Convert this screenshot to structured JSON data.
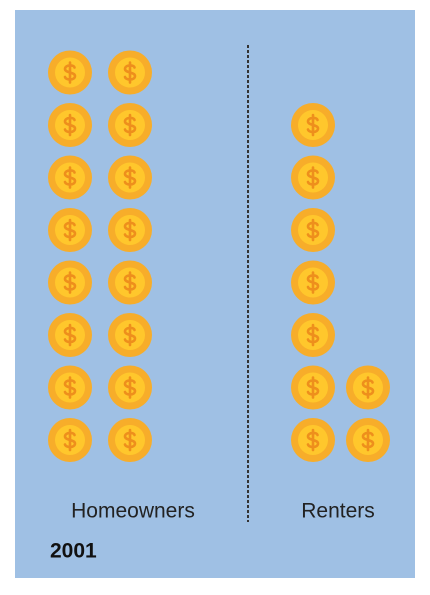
{
  "chart_data": {
    "type": "pictograph",
    "title": "2001",
    "categories": [
      "Homeowners",
      "Renters"
    ],
    "values": [
      16,
      9
    ],
    "color": "#f7ad2a",
    "background": "#9fc0e4"
  }
}
